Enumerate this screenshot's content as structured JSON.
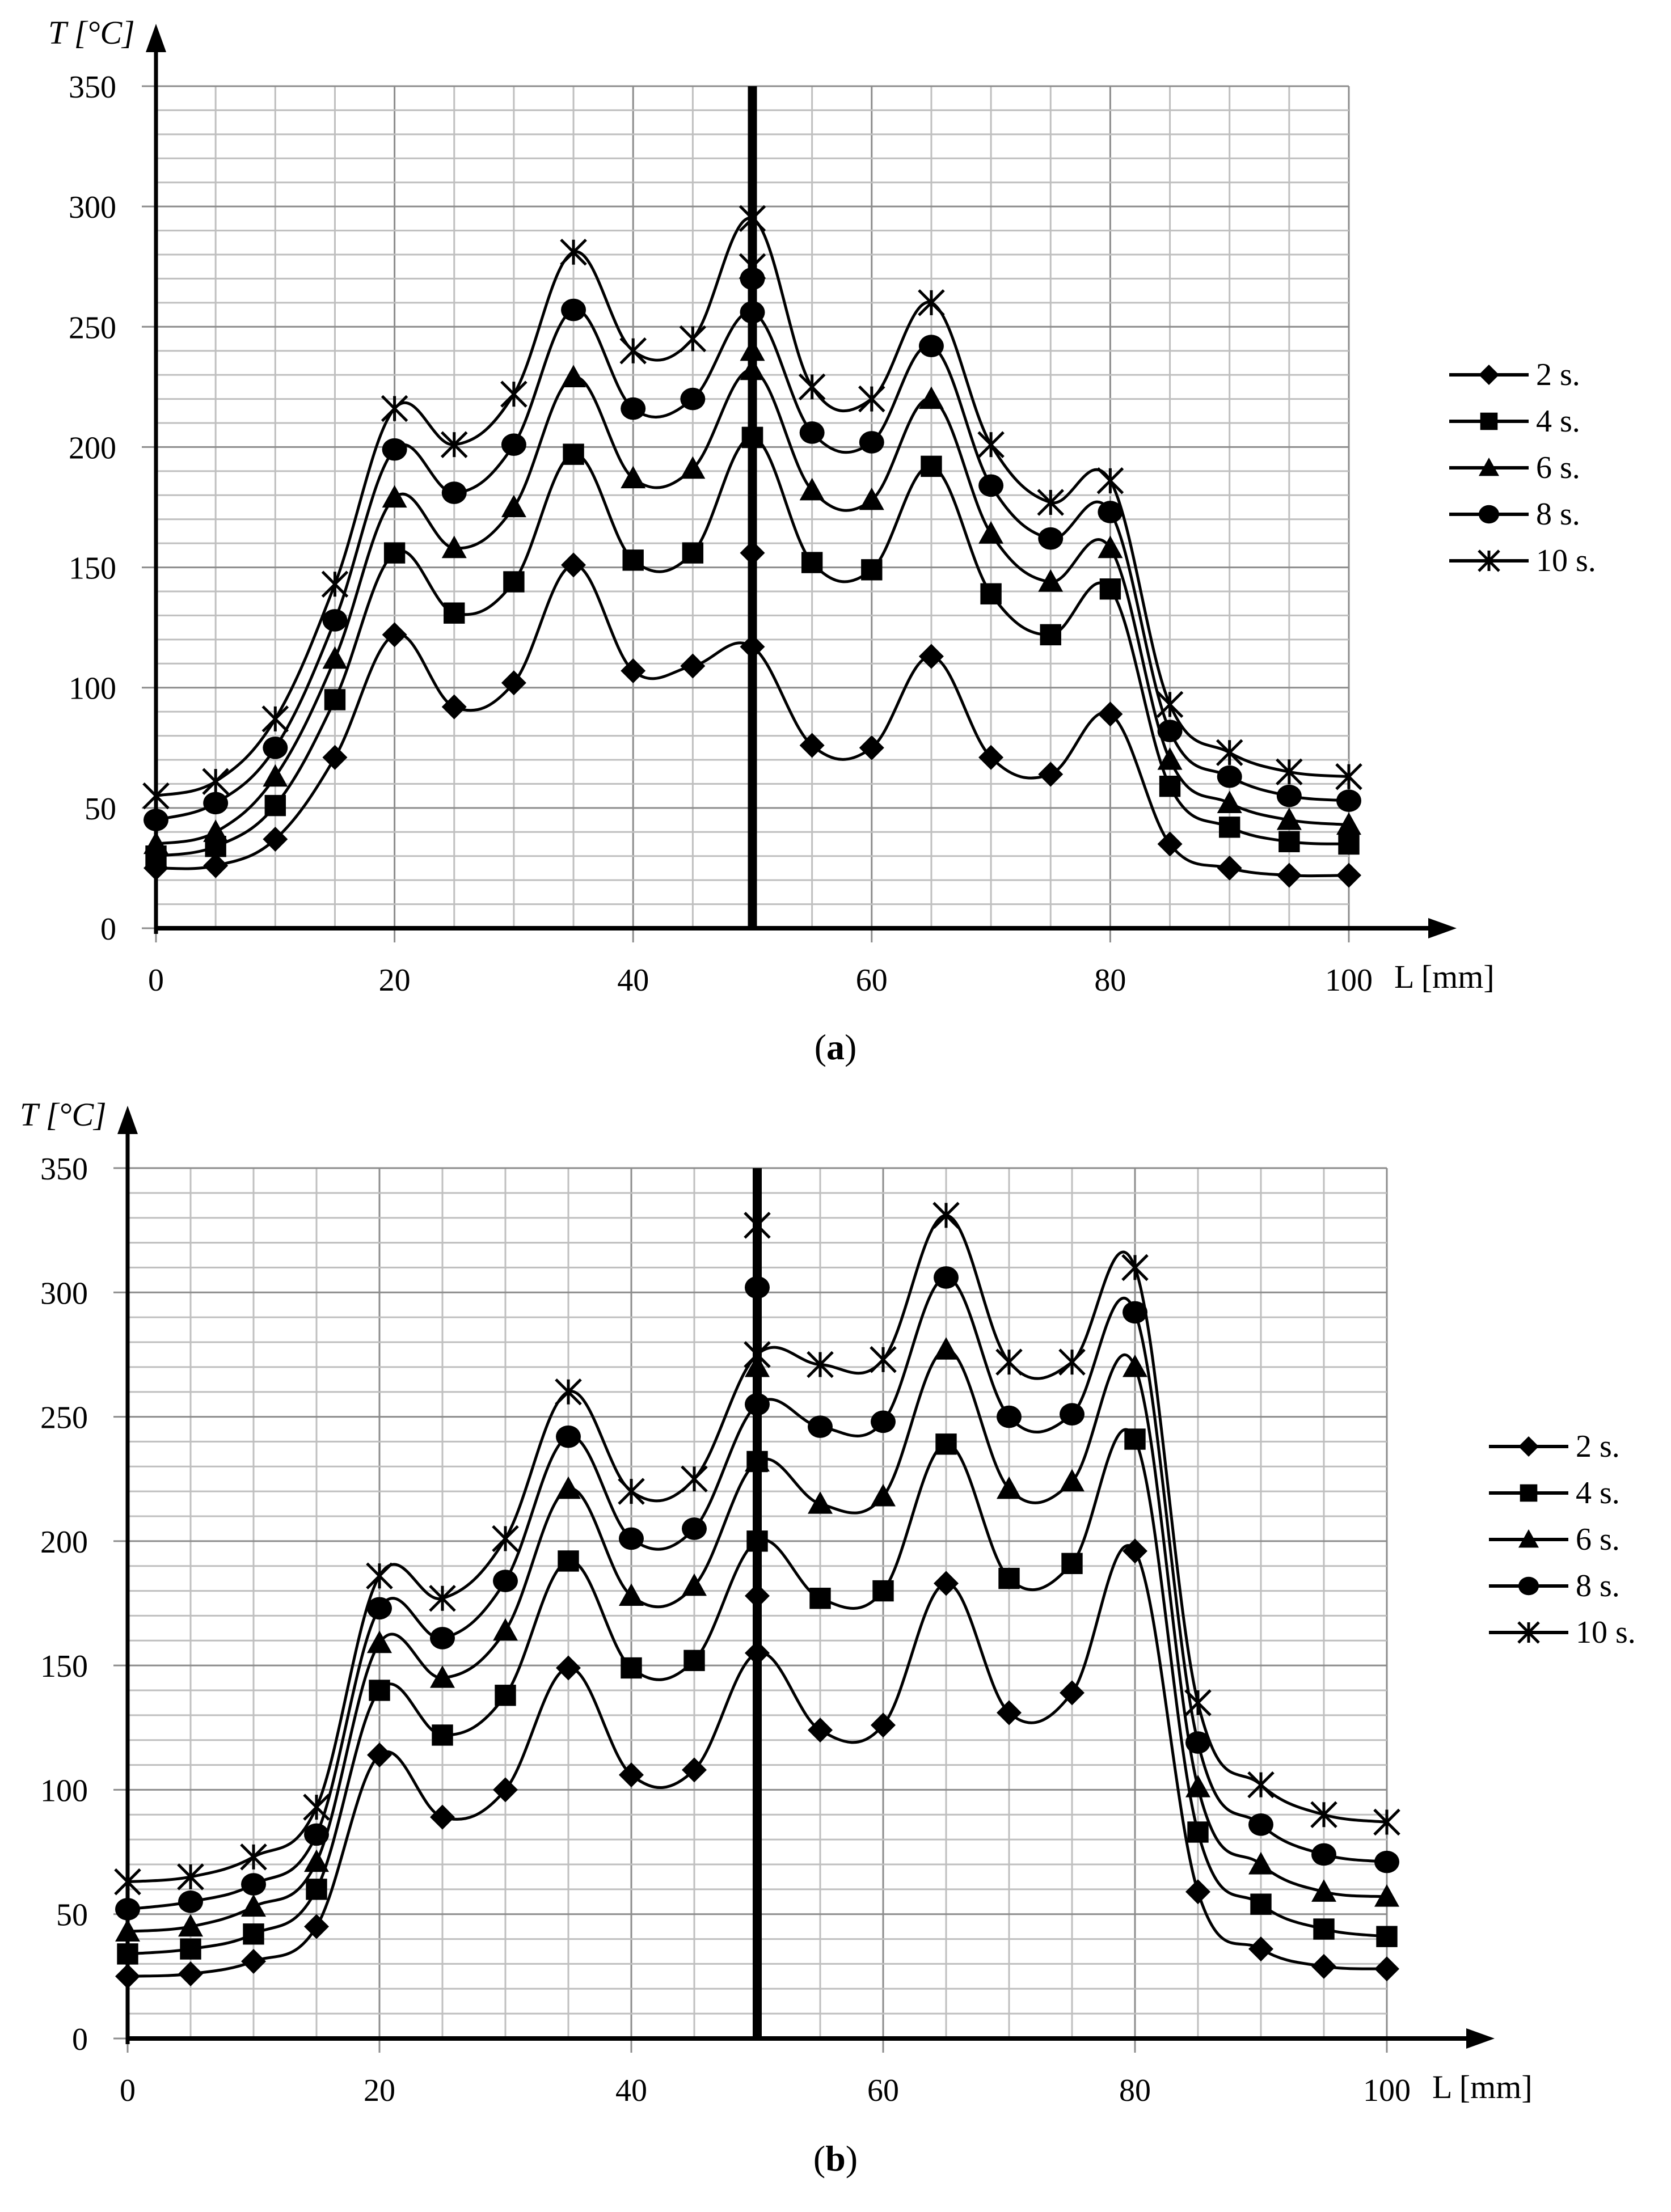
{
  "chart_data": [
    {
      "panel": "a",
      "type": "line",
      "caption": "(a)",
      "title": "",
      "xlabel": "L [mm]",
      "ylabel": "T [°C]",
      "xlim": [
        0,
        100
      ],
      "ylim": [
        0,
        350
      ],
      "xticks": [
        0,
        20,
        40,
        60,
        80,
        100
      ],
      "yticks": [
        0,
        50,
        100,
        150,
        200,
        250,
        300,
        350
      ],
      "grid": true,
      "legend_position": "right",
      "vertical_marker_x": 50,
      "x": [
        0,
        5,
        10,
        15,
        20,
        25,
        30,
        35,
        40,
        45,
        50,
        55,
        60,
        65,
        70,
        75,
        80,
        85,
        90,
        95,
        100
      ],
      "series": [
        {
          "name": "2 s.",
          "marker": "diamond",
          "values": [
            25,
            26,
            37,
            71,
            122,
            92,
            102,
            151,
            107,
            109,
            117,
            76,
            75,
            113,
            71,
            64,
            89,
            35,
            25,
            22,
            22
          ],
          "extra_at_50": 156
        },
        {
          "name": "4 s.",
          "marker": "square",
          "values": [
            30,
            34,
            51,
            95,
            156,
            131,
            144,
            197,
            153,
            156,
            204,
            152,
            149,
            192,
            139,
            122,
            141,
            59,
            42,
            36,
            35
          ],
          "extra_at_50": 204
        },
        {
          "name": "6 s.",
          "marker": "triangle",
          "values": [
            35,
            40,
            63,
            112,
            179,
            158,
            175,
            229,
            187,
            191,
            232,
            182,
            178,
            220,
            164,
            144,
            158,
            70,
            52,
            45,
            43
          ],
          "extra_at_50": 240
        },
        {
          "name": "8 s.",
          "marker": "circle",
          "values": [
            45,
            52,
            75,
            128,
            199,
            181,
            201,
            257,
            216,
            220,
            256,
            206,
            202,
            242,
            184,
            162,
            173,
            82,
            63,
            55,
            53
          ],
          "extra_at_50": 270
        },
        {
          "name": "10 s.",
          "marker": "asterisk",
          "values": [
            55,
            61,
            87,
            143,
            216,
            201,
            222,
            281,
            240,
            245,
            295,
            225,
            220,
            260,
            201,
            177,
            186,
            93,
            73,
            65,
            63
          ],
          "extra_at_50": 275
        }
      ]
    },
    {
      "panel": "b",
      "type": "line",
      "caption": "(b)",
      "title": "",
      "xlabel": "L [mm]",
      "ylabel": "T [°C]",
      "xlim": [
        0,
        100
      ],
      "ylim": [
        0,
        350
      ],
      "xticks": [
        0,
        20,
        40,
        60,
        80,
        100
      ],
      "yticks": [
        0,
        50,
        100,
        150,
        200,
        250,
        300,
        350
      ],
      "grid": true,
      "legend_position": "right",
      "vertical_marker_x": 50,
      "x": [
        0,
        5,
        10,
        15,
        20,
        25,
        30,
        35,
        40,
        45,
        50,
        55,
        60,
        65,
        70,
        75,
        80,
        85,
        90,
        95,
        100
      ],
      "series": [
        {
          "name": "2 s.",
          "marker": "diamond",
          "values": [
            25,
            26,
            31,
            45,
            114,
            89,
            100,
            149,
            106,
            108,
            155,
            124,
            126,
            183,
            131,
            139,
            196,
            59,
            36,
            29,
            28
          ],
          "extra_at_50": 178
        },
        {
          "name": "4 s.",
          "marker": "square",
          "values": [
            34,
            36,
            42,
            60,
            140,
            122,
            138,
            192,
            149,
            152,
            200,
            177,
            180,
            239,
            185,
            191,
            241,
            83,
            54,
            44,
            41
          ],
          "extra_at_50": 232
        },
        {
          "name": "6 s.",
          "marker": "triangle",
          "values": [
            43,
            45,
            53,
            71,
            159,
            145,
            164,
            221,
            178,
            182,
            232,
            215,
            218,
            277,
            221,
            224,
            270,
            101,
            70,
            59,
            57
          ],
          "extra_at_50": 270
        },
        {
          "name": "8 s.",
          "marker": "circle",
          "values": [
            52,
            55,
            62,
            82,
            173,
            161,
            184,
            242,
            201,
            205,
            255,
            246,
            248,
            306,
            250,
            251,
            292,
            119,
            86,
            74,
            71
          ],
          "extra_at_50": 302
        },
        {
          "name": "10 s.",
          "marker": "asterisk",
          "values": [
            63,
            65,
            73,
            93,
            186,
            177,
            201,
            260,
            220,
            225,
            275,
            271,
            273,
            331,
            272,
            272,
            310,
            135,
            102,
            90,
            87
          ],
          "extra_at_50": 327
        }
      ]
    }
  ],
  "panels": {
    "a": {
      "ylabel": "T [°C]",
      "xlabel": "L [mm]",
      "caption_letter": "a",
      "legend": [
        "2 s.",
        "4 s.",
        "6 s.",
        "8 s.",
        "10 s."
      ]
    },
    "b": {
      "ylabel": "T [°C]",
      "xlabel": "L [mm]",
      "caption_letter": "b",
      "legend": [
        "2 s.",
        "4 s.",
        "6 s.",
        "8 s.",
        "10 s."
      ]
    }
  },
  "colors": {
    "line": "#000000",
    "grid_major": "#8c8c8c",
    "grid_minor": "#bfbfbf",
    "handle": "#8fd3f0"
  }
}
